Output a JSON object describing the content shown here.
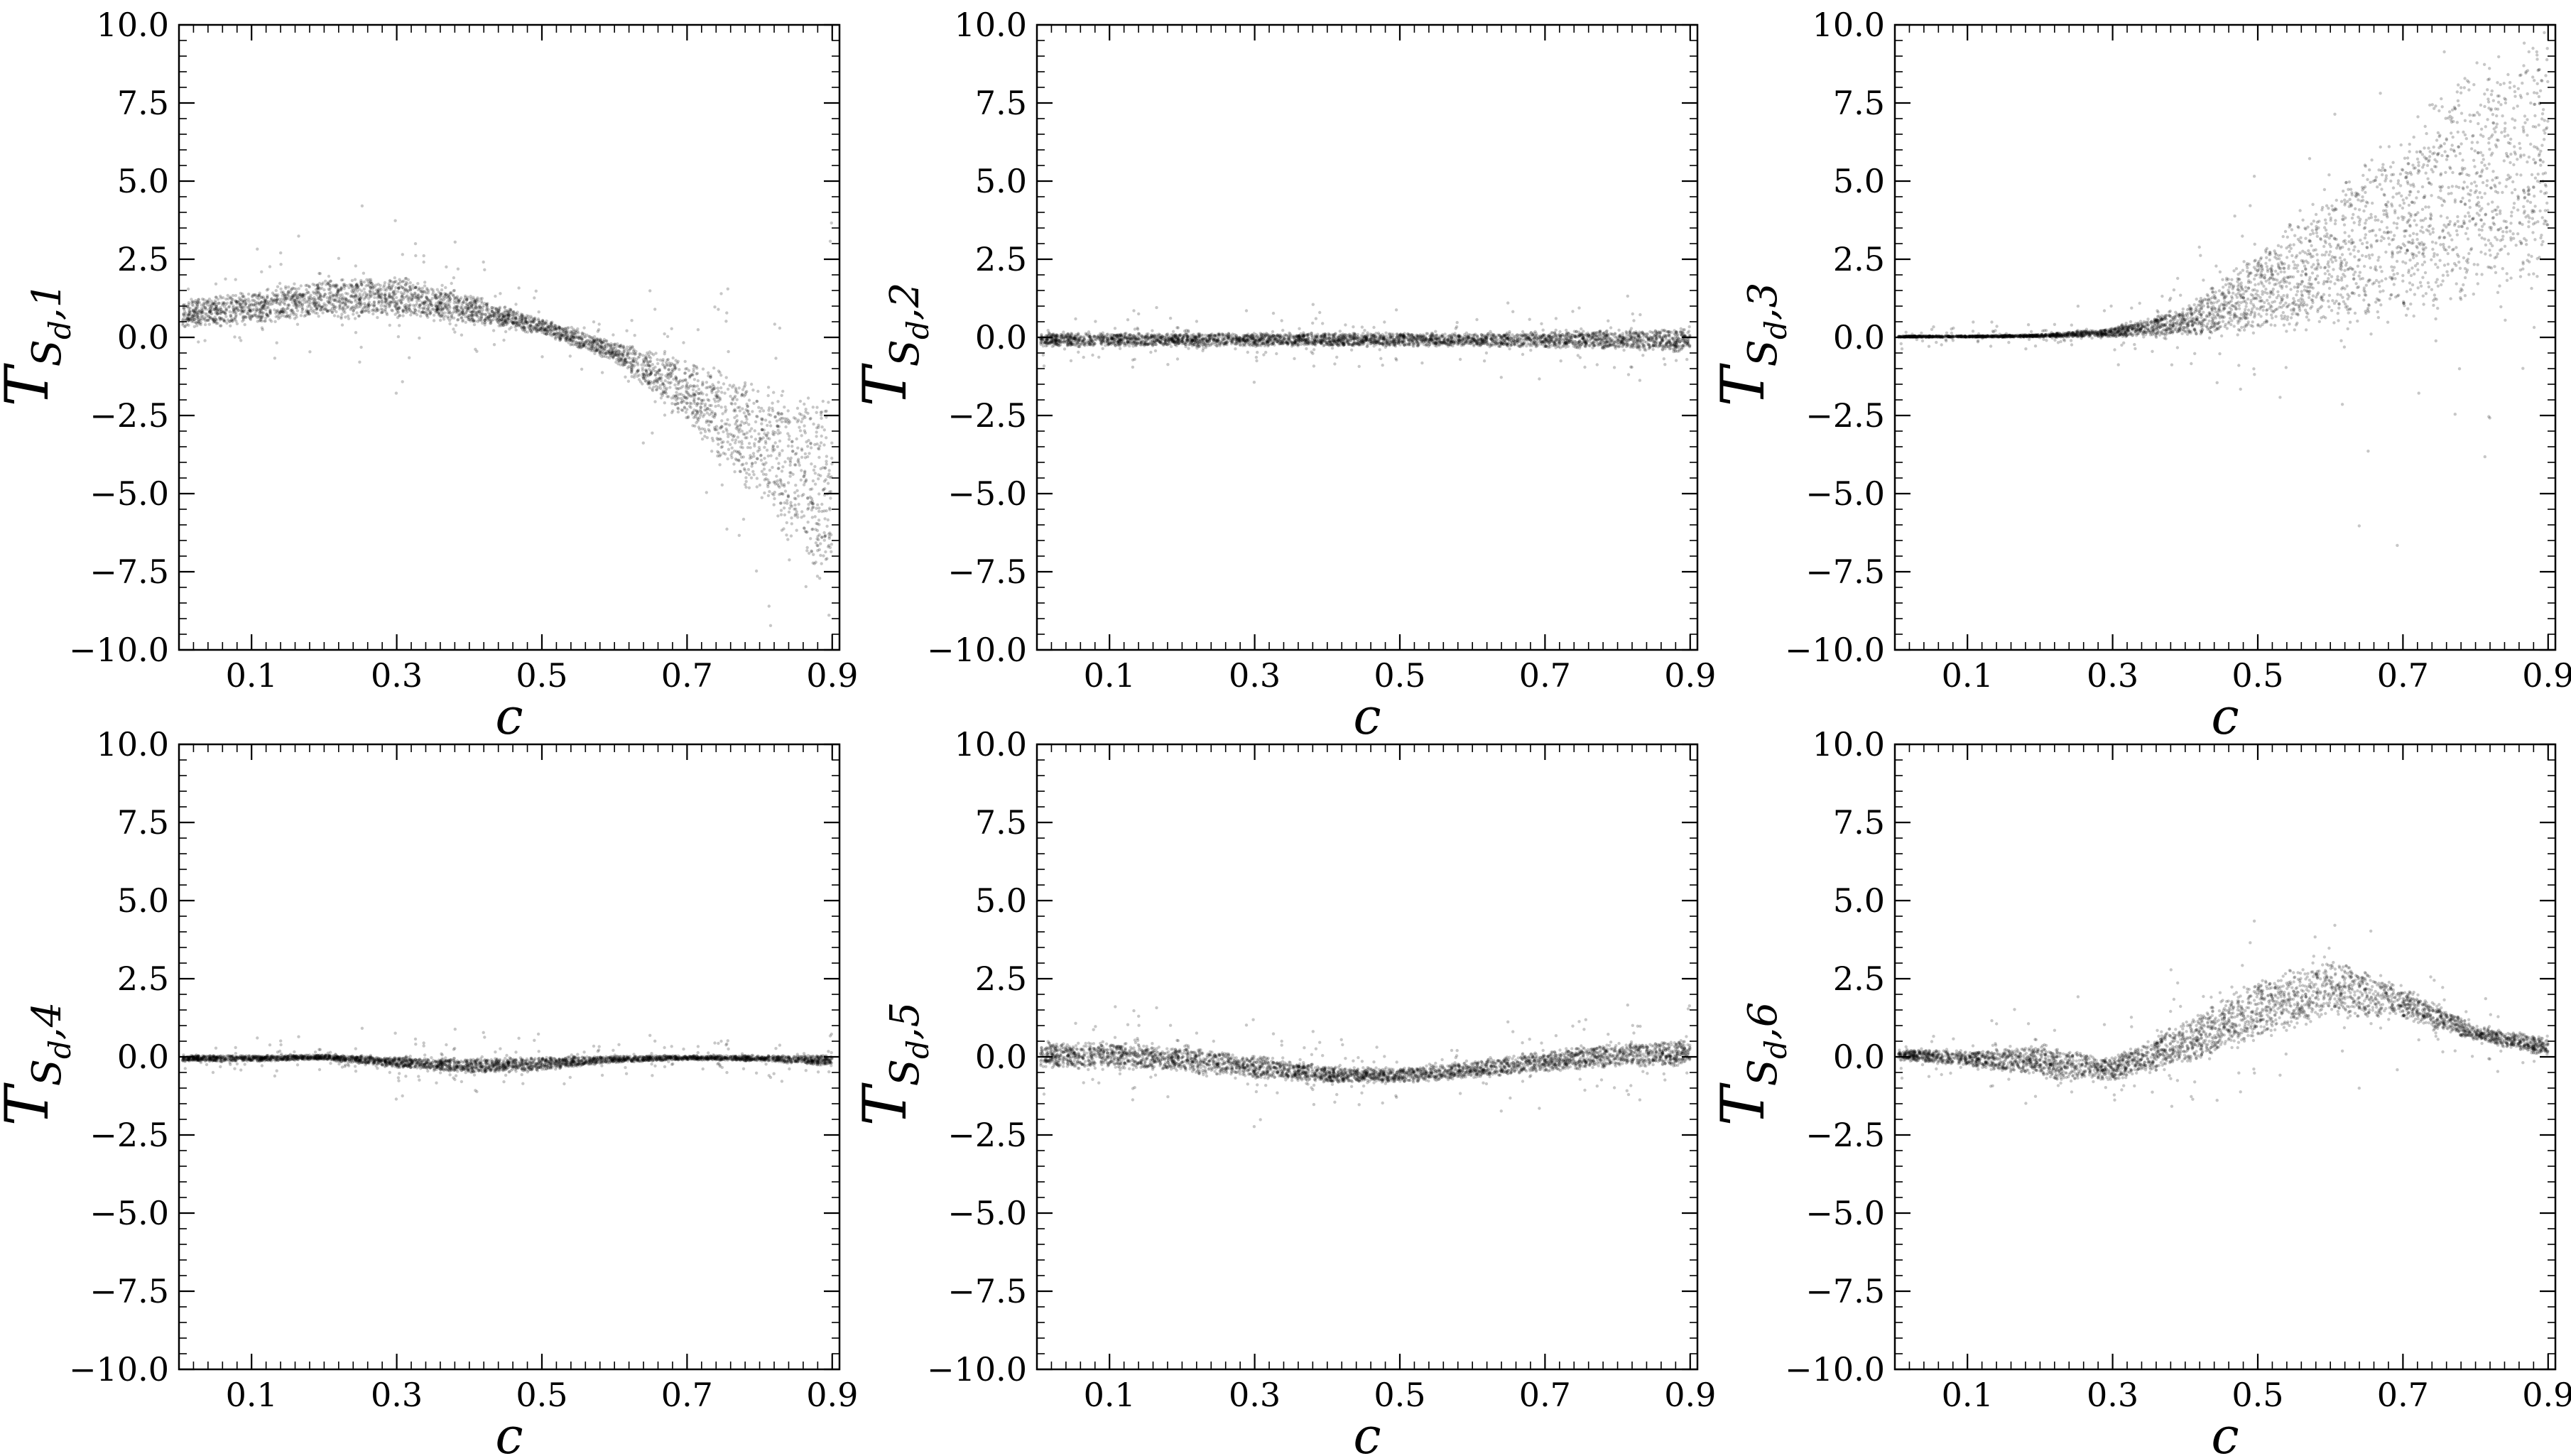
{
  "chart_data": [
    {
      "type": "scatter",
      "xlabel": "c",
      "ylabel": {
        "main": "T",
        "sub": "S",
        "sub2": "d",
        "index": ",1"
      },
      "xlim": [
        0.0,
        0.91
      ],
      "ylim": [
        -10.0,
        10.0
      ],
      "xticks": [
        "0.1",
        "0.3",
        "0.5",
        "0.7",
        "0.9"
      ],
      "yticks": [
        "10.0",
        "7.5",
        "5.0",
        "2.5",
        "0.0",
        "−2.5",
        "−5.0",
        "−7.5",
        "−10.0"
      ],
      "band": {
        "x": [
          0.0,
          0.1,
          0.2,
          0.3,
          0.4,
          0.5,
          0.6,
          0.7,
          0.8,
          0.9
        ],
        "lower": [
          0.3,
          0.4,
          0.6,
          0.6,
          0.4,
          0.1,
          -0.8,
          -2.8,
          -5.5,
          -8.5
        ],
        "upper": [
          1.2,
          1.5,
          1.9,
          2.0,
          1.4,
          0.6,
          -0.1,
          -0.6,
          -1.3,
          -2.0
        ]
      }
    },
    {
      "type": "scatter",
      "xlabel": "c",
      "ylabel": {
        "main": "T",
        "sub": "S",
        "sub2": "d",
        "index": ",2"
      },
      "xlim": [
        0.0,
        0.91
      ],
      "ylim": [
        -10.0,
        10.0
      ],
      "xticks": [
        "0.1",
        "0.3",
        "0.5",
        "0.7",
        "0.9"
      ],
      "yticks": [
        "10.0",
        "7.5",
        "5.0",
        "2.5",
        "0.0",
        "−2.5",
        "−5.0",
        "−7.5",
        "−10.0"
      ],
      "band": {
        "x": [
          0.0,
          0.1,
          0.2,
          0.3,
          0.4,
          0.5,
          0.6,
          0.7,
          0.8,
          0.9
        ],
        "lower": [
          -0.3,
          -0.3,
          -0.3,
          -0.3,
          -0.3,
          -0.3,
          -0.3,
          -0.35,
          -0.4,
          -0.5
        ],
        "upper": [
          0.15,
          0.15,
          0.15,
          0.15,
          0.15,
          0.15,
          0.15,
          0.2,
          0.25,
          0.3
        ]
      }
    },
    {
      "type": "scatter",
      "xlabel": "c",
      "ylabel": {
        "main": "T",
        "sub": "S",
        "sub2": "d",
        "index": ",3"
      },
      "xlim": [
        0.0,
        0.91
      ],
      "ylim": [
        -10.0,
        10.0
      ],
      "xticks": [
        "0.1",
        "0.3",
        "0.5",
        "0.7",
        "0.9"
      ],
      "yticks": [
        "10.0",
        "7.5",
        "5.0",
        "2.5",
        "0.0",
        "−2.5",
        "−5.0",
        "−7.5",
        "−10.0"
      ],
      "band": {
        "x": [
          0.0,
          0.1,
          0.2,
          0.3,
          0.4,
          0.5,
          0.6,
          0.7,
          0.8,
          0.9
        ],
        "lower": [
          0.0,
          0.0,
          0.0,
          0.0,
          0.0,
          0.05,
          0.1,
          0.3,
          0.8,
          1.5
        ],
        "upper": [
          0.05,
          0.05,
          0.1,
          0.3,
          1.0,
          2.8,
          5.0,
          7.0,
          9.0,
          10.0
        ]
      }
    },
    {
      "type": "scatter",
      "xlabel": "c",
      "ylabel": {
        "main": "T",
        "sub": "S",
        "sub2": "d",
        "index": ",4"
      },
      "xlim": [
        0.0,
        0.91
      ],
      "ylim": [
        -10.0,
        10.0
      ],
      "xticks": [
        "0.1",
        "0.3",
        "0.5",
        "0.7",
        "0.9"
      ],
      "yticks": [
        "10.0",
        "7.5",
        "5.0",
        "2.5",
        "0.0",
        "−2.5",
        "−5.0",
        "−7.5",
        "−10.0"
      ],
      "band": {
        "x": [
          0.0,
          0.1,
          0.2,
          0.3,
          0.4,
          0.5,
          0.6,
          0.7,
          0.8,
          0.9
        ],
        "lower": [
          -0.15,
          -0.15,
          -0.1,
          -0.35,
          -0.55,
          -0.45,
          -0.2,
          -0.1,
          -0.15,
          -0.3
        ],
        "upper": [
          0.05,
          0.05,
          0.08,
          0.0,
          -0.05,
          0.0,
          0.05,
          0.05,
          0.05,
          0.05
        ]
      }
    },
    {
      "type": "scatter",
      "xlabel": "c",
      "ylabel": {
        "main": "T",
        "sub": "S",
        "sub2": "d",
        "index": ",5"
      },
      "xlim": [
        0.0,
        0.91
      ],
      "ylim": [
        -10.0,
        10.0
      ],
      "xticks": [
        "0.1",
        "0.3",
        "0.5",
        "0.7",
        "0.9"
      ],
      "yticks": [
        "10.0",
        "7.5",
        "5.0",
        "2.5",
        "0.0",
        "−2.5",
        "−5.0",
        "−7.5",
        "−10.0"
      ],
      "band": {
        "x": [
          0.0,
          0.1,
          0.2,
          0.3,
          0.4,
          0.5,
          0.6,
          0.7,
          0.8,
          0.9
        ],
        "lower": [
          -0.35,
          -0.4,
          -0.5,
          -0.7,
          -0.85,
          -0.85,
          -0.7,
          -0.5,
          -0.35,
          -0.3
        ],
        "upper": [
          0.45,
          0.5,
          0.35,
          0.05,
          -0.3,
          -0.35,
          -0.1,
          0.2,
          0.45,
          0.55
        ]
      }
    },
    {
      "type": "scatter",
      "xlabel": "c",
      "ylabel": {
        "main": "T",
        "sub": "S",
        "sub2": "d",
        "index": ",6"
      },
      "xlim": [
        0.0,
        0.91
      ],
      "ylim": [
        -10.0,
        10.0
      ],
      "xticks": [
        "0.1",
        "0.3",
        "0.5",
        "0.7",
        "0.9"
      ],
      "yticks": [
        "10.0",
        "7.5",
        "5.0",
        "2.5",
        "0.0",
        "−2.5",
        "−5.0",
        "−7.5",
        "−10.0"
      ],
      "band": {
        "x": [
          0.0,
          0.1,
          0.2,
          0.3,
          0.4,
          0.5,
          0.6,
          0.7,
          0.8,
          0.9
        ],
        "lower": [
          -0.1,
          -0.3,
          -0.7,
          -0.8,
          -0.3,
          0.5,
          1.2,
          1.2,
          0.5,
          0.0
        ],
        "upper": [
          0.25,
          0.2,
          0.4,
          0.0,
          1.2,
          2.5,
          3.3,
          2.3,
          1.0,
          0.6
        ]
      }
    }
  ]
}
